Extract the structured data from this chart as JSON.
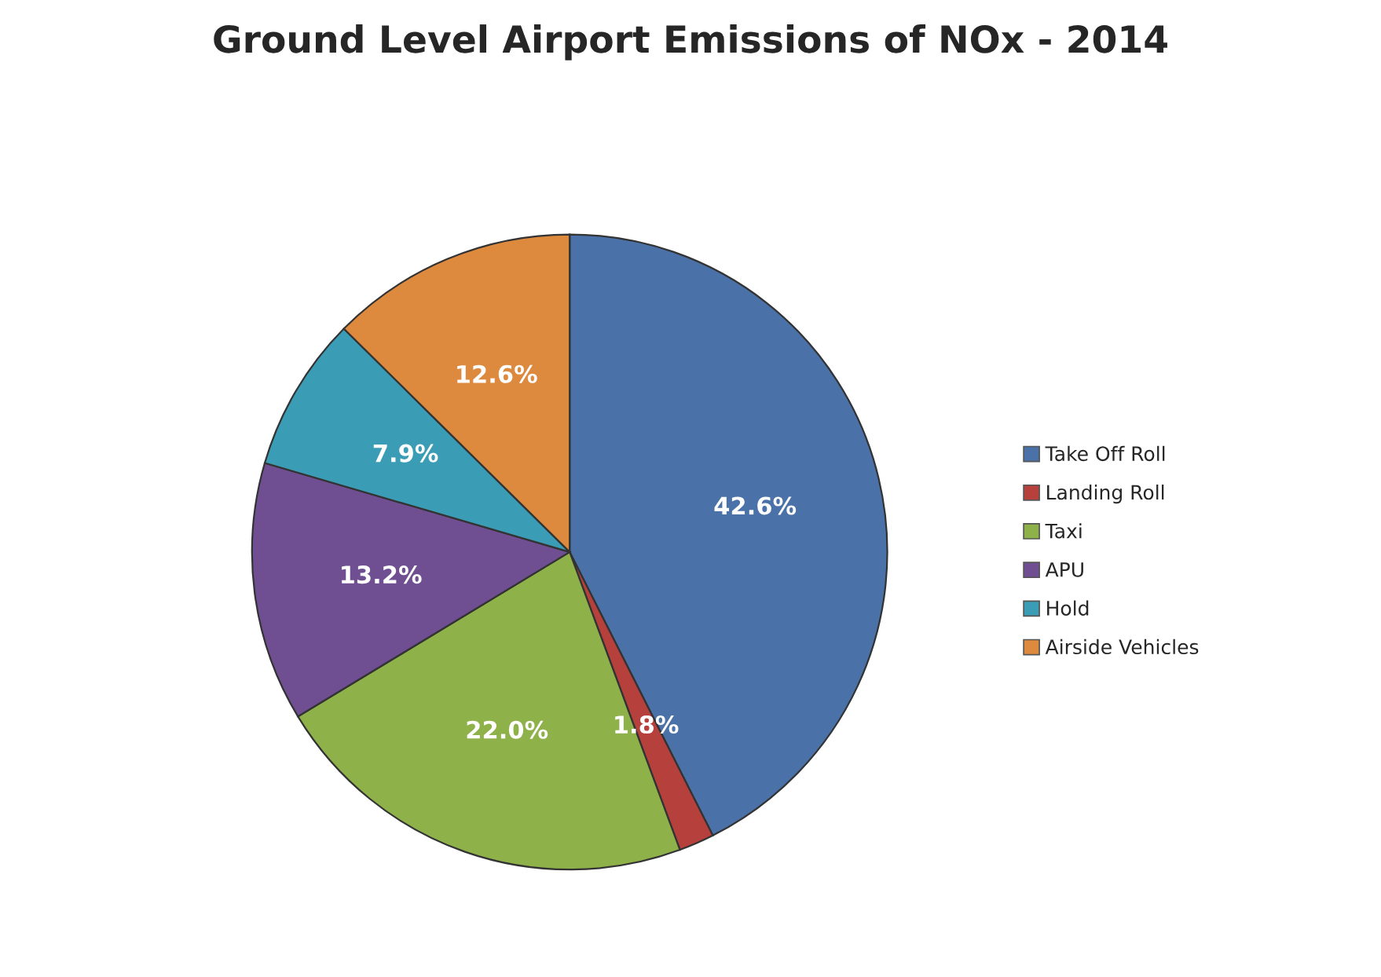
{
  "chart_data": {
    "type": "pie",
    "title": "Ground Level Airport Emissions of NOx - 2014",
    "categories": [
      "Take Off Roll",
      "Landing Roll",
      "Taxi",
      "APU",
      "Hold",
      "Airside Vehicles"
    ],
    "values": [
      42.6,
      1.8,
      22.0,
      13.2,
      7.9,
      12.6
    ],
    "value_labels": [
      "42.6%",
      "1.8%",
      "22.0%",
      "13.2%",
      "7.9%",
      "12.6%"
    ],
    "colors": [
      "#4a72a8",
      "#b5403c",
      "#8fb14a",
      "#6f4f92",
      "#3b9db5",
      "#dd8a3e"
    ],
    "legend": "right"
  }
}
